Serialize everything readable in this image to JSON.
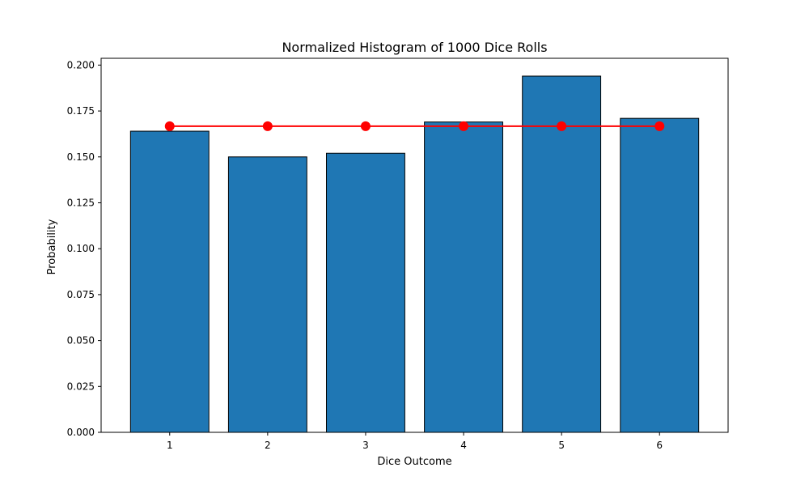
{
  "chart_data": {
    "type": "bar",
    "title": "Normalized Histogram of 1000 Dice Rolls",
    "xlabel": "Dice Outcome",
    "ylabel": "Probability",
    "categories": [
      "1",
      "2",
      "3",
      "4",
      "5",
      "6"
    ],
    "series": [
      {
        "type": "bar",
        "values": [
          0.164,
          0.15,
          0.152,
          0.169,
          0.194,
          0.171
        ]
      },
      {
        "type": "line",
        "values": [
          0.1667,
          0.1667,
          0.1667,
          0.1667,
          0.1667,
          0.1667
        ]
      }
    ],
    "x_ticks": [
      "1",
      "2",
      "3",
      "4",
      "5",
      "6"
    ],
    "ylim": [
      0,
      0.2037
    ],
    "y_ticks": [
      "0.000",
      "0.025",
      "0.050",
      "0.075",
      "0.100",
      "0.125",
      "0.150",
      "0.175",
      "0.200"
    ],
    "grid": false,
    "colors": {
      "bar_fill": "#1f77b4",
      "bar_edge": "#000000",
      "line": "#ff0000",
      "marker": "#ff0000"
    }
  }
}
